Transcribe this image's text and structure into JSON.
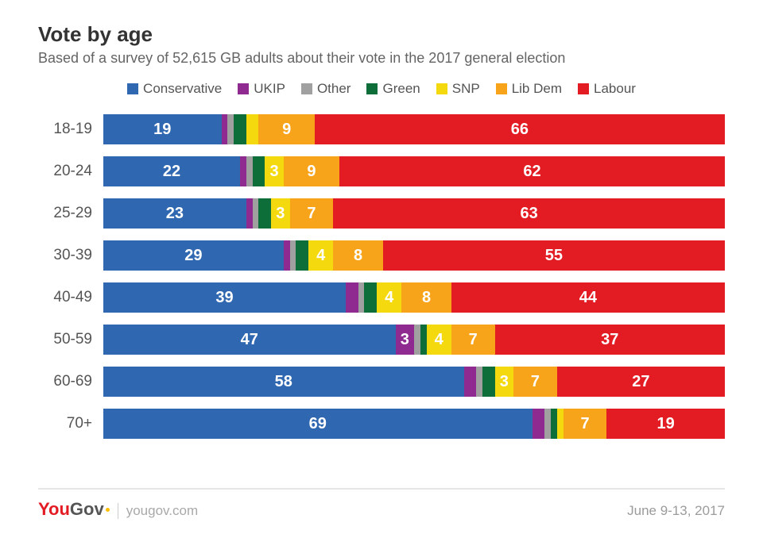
{
  "title": "Vote by age",
  "subtitle": "Based of a survey of 52,615 GB adults about their vote in the 2017 general election",
  "legend": [
    {
      "label": "Conservative",
      "color": "#3067b1"
    },
    {
      "label": "UKIP",
      "color": "#8e2a90"
    },
    {
      "label": "Other",
      "color": "#a0a0a0"
    },
    {
      "label": "Green",
      "color": "#0e6e3a"
    },
    {
      "label": "SNP",
      "color": "#f4d90f"
    },
    {
      "label": "Lib Dem",
      "color": "#f8a41b"
    },
    {
      "label": "Labour",
      "color": "#e31b23"
    }
  ],
  "label_threshold": 3,
  "bar_label_fontsize": 20,
  "bar_label_weight": 700,
  "bar_label_color": "#ffffff",
  "age_label_fontsize": 19,
  "background_color": "#ffffff",
  "rows": [
    {
      "age": "18-19",
      "values": [
        19,
        1,
        1,
        2,
        2,
        9,
        66
      ]
    },
    {
      "age": "20-24",
      "values": [
        22,
        1,
        1,
        2,
        3,
        9,
        62
      ]
    },
    {
      "age": "25-29",
      "values": [
        23,
        1,
        1,
        2,
        3,
        7,
        63
      ]
    },
    {
      "age": "30-39",
      "values": [
        29,
        1,
        1,
        2,
        4,
        8,
        55
      ]
    },
    {
      "age": "40-49",
      "values": [
        39,
        2,
        1,
        2,
        4,
        8,
        44
      ]
    },
    {
      "age": "50-59",
      "values": [
        47,
        3,
        1,
        1,
        4,
        7,
        37
      ]
    },
    {
      "age": "60-69",
      "values": [
        58,
        2,
        1,
        2,
        3,
        7,
        27
      ]
    },
    {
      "age": "70+",
      "values": [
        69,
        2,
        1,
        1,
        1,
        7,
        19
      ]
    }
  ],
  "footer": {
    "brand_red": "You",
    "brand_grey": "Gov",
    "url": "yougov.com",
    "date": "June 9-13, 2017"
  }
}
